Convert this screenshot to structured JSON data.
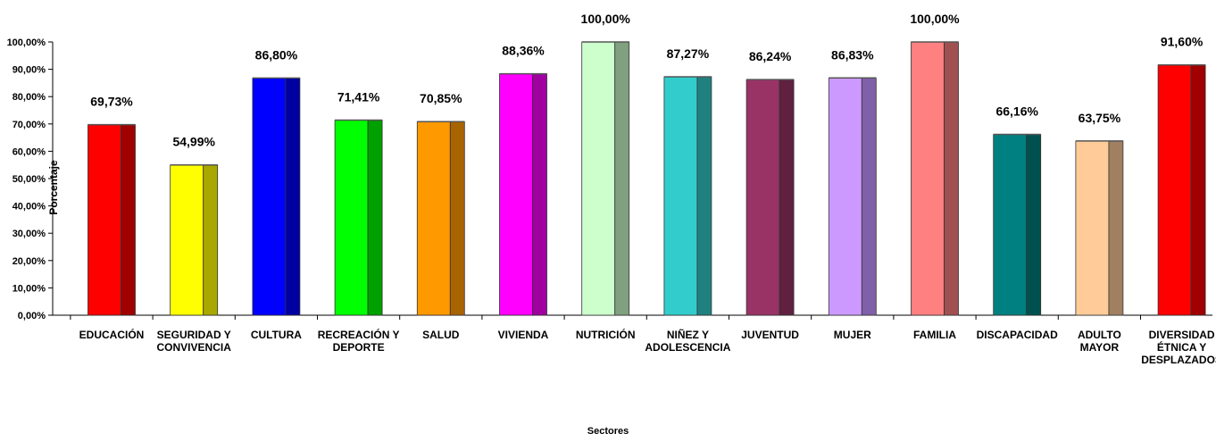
{
  "chart_data": {
    "type": "bar",
    "title": "",
    "xlabel": "Sectores",
    "ylabel": "Porcentaje",
    "ylim": [
      0,
      100
    ],
    "yticks": [
      "0,00%",
      "10,00%",
      "20,00%",
      "30,00%",
      "40,00%",
      "50,00%",
      "60,00%",
      "70,00%",
      "80,00%",
      "90,00%",
      "100,00%"
    ],
    "categories": [
      "EDUCACIÓN",
      "SEGURIDAD Y\nCONVIVENCIA",
      "CULTURA",
      "RECREACIÓN Y\nDEPORTE",
      "SALUD",
      "VIVIENDA",
      "NUTRICIÓN",
      "NIÑEZ Y\nADOLESCENCIA",
      "JUVENTUD",
      "MUJER",
      "FAMILIA",
      "DISCAPACIDAD",
      "ADULTO\nMAYOR",
      "DIVERSIDAD\nÉTNICA Y\nDESPLAZADOS"
    ],
    "values": [
      69.73,
      54.99,
      86.8,
      71.41,
      70.85,
      88.36,
      100.0,
      87.27,
      86.24,
      86.83,
      100.0,
      66.16,
      63.75,
      91.6
    ],
    "value_labels": [
      "69,73%",
      "54,99%",
      "86,80%",
      "71,41%",
      "70,85%",
      "88,36%",
      "100,00%",
      "87,27%",
      "86,24%",
      "86,83%",
      "100,00%",
      "66,16%",
      "63,75%",
      "91,60%"
    ],
    "colors": [
      "#FF0000",
      "#FFFF00",
      "#0000FF",
      "#00FF00",
      "#FF9900",
      "#FF00FF",
      "#CCFFCC",
      "#33CCCC",
      "#993366",
      "#CC99FF",
      "#FF8080",
      "#008080",
      "#FFCC99",
      "#FF0000"
    ],
    "side_colors": [
      "#A00000",
      "#A8A800",
      "#0000A0",
      "#00A000",
      "#A86400",
      "#A000A0",
      "#80A080",
      "#208080",
      "#602040",
      "#8060A8",
      "#A05050",
      "#005050",
      "#A08060",
      "#A00000"
    ],
    "grid": false,
    "legend": "none"
  }
}
